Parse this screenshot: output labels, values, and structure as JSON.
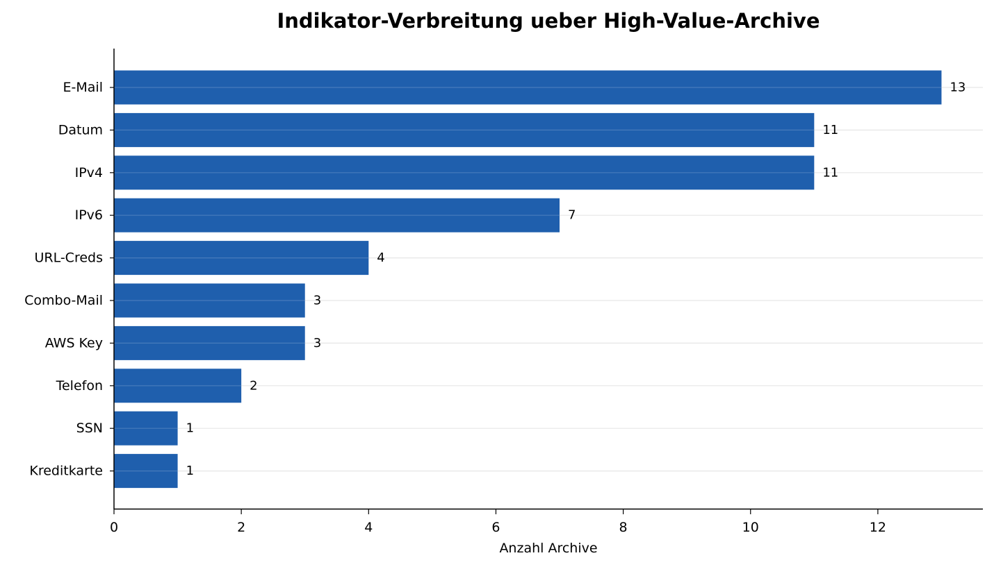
{
  "chart_data": {
    "type": "bar",
    "orientation": "horizontal",
    "title": "Indikator-Verbreitung ueber High-Value-Archive",
    "xlabel": "Anzahl Archive",
    "ylabel": "",
    "categories": [
      "E-Mail",
      "Datum",
      "IPv4",
      "IPv6",
      "URL-Creds",
      "Combo-Mail",
      "AWS Key",
      "Telefon",
      "SSN",
      "Kreditkarte"
    ],
    "values": [
      13,
      11,
      11,
      7,
      4,
      3,
      3,
      2,
      1,
      1
    ],
    "data_labels": [
      "13",
      "11",
      "11",
      "7",
      "4",
      "3",
      "3",
      "2",
      "1",
      "1"
    ],
    "xlim": [
      0,
      13.65
    ],
    "xticks": [
      0,
      2,
      4,
      6,
      8,
      10,
      12
    ],
    "xtick_labels": [
      "0",
      "2",
      "4",
      "6",
      "8",
      "10",
      "12"
    ],
    "grid": "horizontal",
    "bar_color": "#1f5fad",
    "grid_color": "#e6e6e6",
    "spines": [
      "left",
      "bottom"
    ]
  }
}
